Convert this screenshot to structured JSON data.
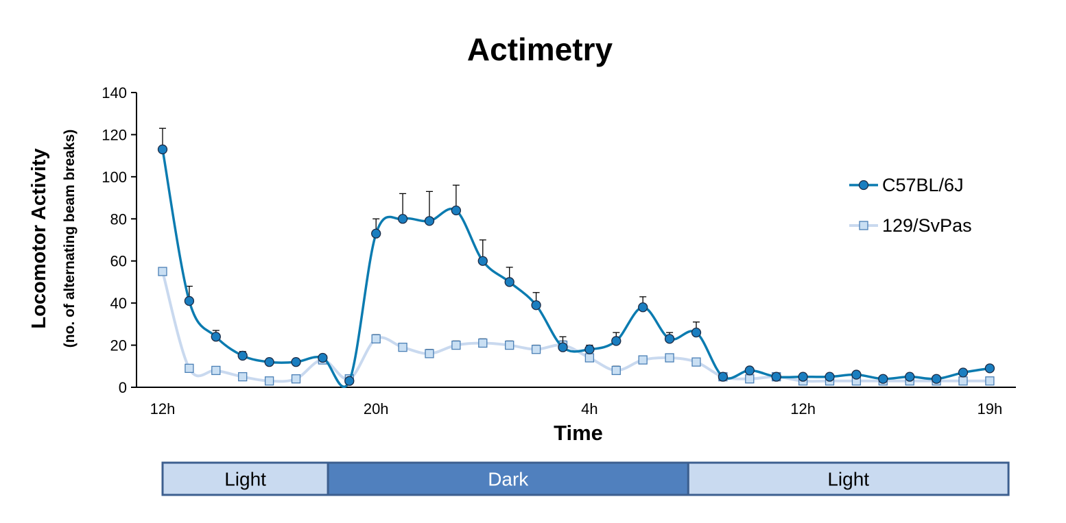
{
  "chart_data": {
    "type": "line",
    "title": "Actimetry",
    "xlabel": "Time",
    "ylabel": "Locomotor Activity",
    "ylabel_sub": "(no. of alternating beam breaks)",
    "ylim": [
      0,
      140
    ],
    "yticks": [
      0,
      20,
      40,
      60,
      80,
      100,
      120,
      140
    ],
    "x_tick_labels": [
      "12h",
      "20h",
      "4h",
      "12h",
      "19h"
    ],
    "x_tick_label_indices": [
      0,
      8,
      16,
      24,
      31
    ],
    "grid": false,
    "legend_position": "right",
    "series": [
      {
        "name": "C57BL/6J",
        "color": "#0b7bb0",
        "marker": "circle",
        "values": [
          113,
          41,
          24,
          15,
          12,
          12,
          14,
          3,
          73,
          80,
          79,
          84,
          60,
          50,
          39,
          19,
          18,
          22,
          38,
          23,
          26,
          5,
          8,
          5,
          5,
          5,
          6,
          4,
          5,
          4,
          7,
          9
        ],
        "error": [
          10,
          7,
          3,
          2,
          0,
          0,
          1,
          0,
          7,
          12,
          14,
          12,
          10,
          7,
          6,
          5,
          2,
          4,
          5,
          3,
          5,
          0,
          1,
          0,
          0,
          0,
          0,
          0,
          0,
          0,
          0,
          0
        ]
      },
      {
        "name": "129/SvPas",
        "color": "#c9d9ef",
        "marker": "square",
        "values": [
          55,
          9,
          8,
          5,
          3,
          4,
          13,
          4,
          23,
          19,
          16,
          20,
          21,
          20,
          18,
          20,
          14,
          8,
          13,
          14,
          12,
          5,
          4,
          5,
          3,
          3,
          3,
          3,
          3,
          3,
          3,
          3
        ],
        "error": [
          0,
          0,
          0,
          0,
          0,
          0,
          0,
          0,
          2,
          1,
          2,
          2,
          2,
          2,
          2,
          2,
          1,
          2,
          0,
          0,
          0,
          0,
          0,
          0,
          0,
          0,
          0,
          0,
          0,
          0,
          0,
          0
        ]
      }
    ],
    "phases": [
      {
        "label": "Light",
        "start_index": 0,
        "end_index": 6.2,
        "fill": "#c9daf0",
        "text_color": "#000000"
      },
      {
        "label": "Dark",
        "start_index": 6.2,
        "end_index": 19.7,
        "fill": "#5080be",
        "text_color": "#ffffff"
      },
      {
        "label": "Light",
        "start_index": 19.7,
        "end_index": 31.7,
        "fill": "#c9daf0",
        "text_color": "#000000"
      }
    ]
  }
}
